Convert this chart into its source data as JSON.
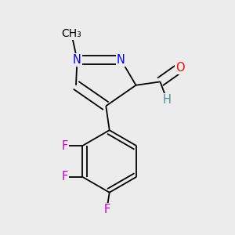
{
  "bg_color": "#ececec",
  "atom_colors": {
    "N": "#0000ff",
    "O": "#ff0000",
    "F": "#cc00cc",
    "C": "#000000",
    "H": "#4a9090"
  },
  "bond_color": "#000000",
  "font_size_atoms": 10.5,
  "xlim": [
    0.0,
    1.0
  ],
  "ylim": [
    0.05,
    0.98
  ]
}
